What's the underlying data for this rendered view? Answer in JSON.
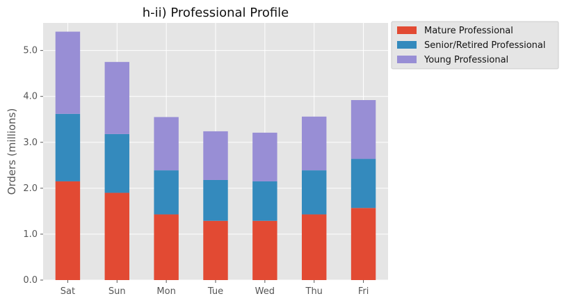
{
  "chart_data": {
    "type": "bar",
    "stacked": true,
    "title": "h-ii) Professional Profile",
    "xlabel": "",
    "ylabel": "Orders (millions)",
    "categories": [
      "Sat",
      "Sun",
      "Mon",
      "Tue",
      "Wed",
      "Thu",
      "Fri"
    ],
    "series": [
      {
        "name": "Mature Professional",
        "color": "#E24A33",
        "values": [
          2.15,
          1.9,
          1.43,
          1.29,
          1.29,
          1.43,
          1.57
        ]
      },
      {
        "name": "Senior/Retired Professional",
        "color": "#348ABD",
        "values": [
          1.47,
          1.28,
          0.96,
          0.89,
          0.86,
          0.96,
          1.07
        ]
      },
      {
        "name": "Young Professional",
        "color": "#988ED5",
        "values": [
          1.79,
          1.57,
          1.16,
          1.06,
          1.06,
          1.17,
          1.28
        ]
      }
    ],
    "ylim": [
      0,
      5.6
    ],
    "yticks": [
      "0.0",
      "1.0",
      "2.0",
      "3.0",
      "4.0",
      "5.0"
    ],
    "grid": true,
    "legend_position": "outside-top-right",
    "background": "#E5E5E5"
  }
}
